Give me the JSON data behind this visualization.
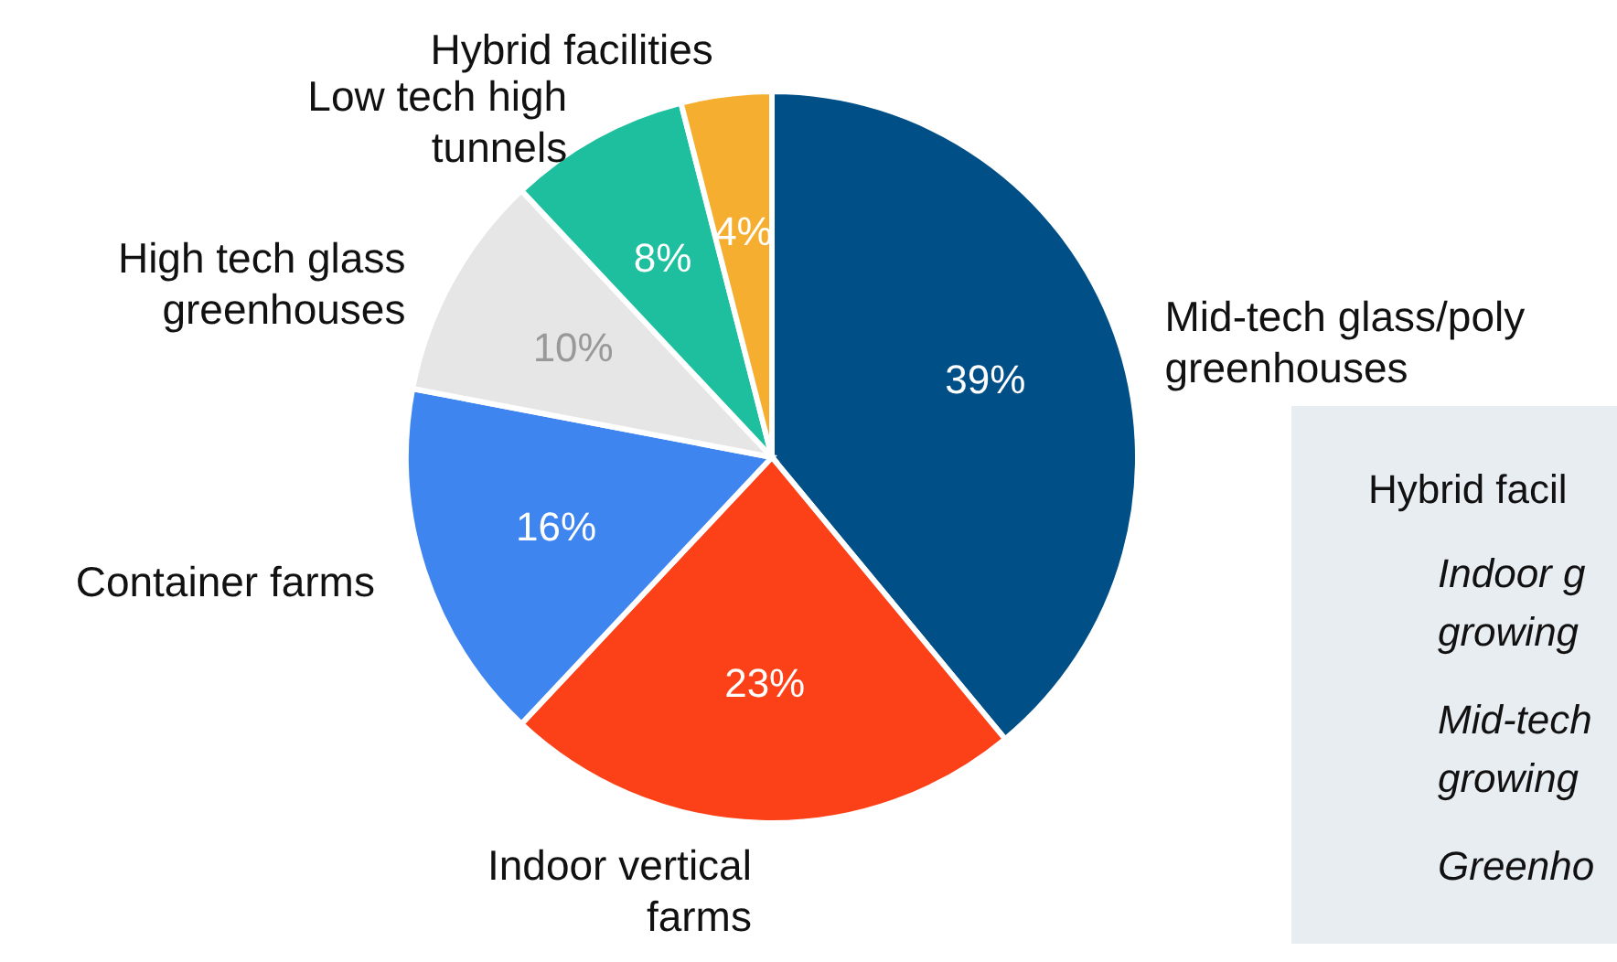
{
  "chart_data": {
    "type": "pie",
    "categories": [
      "Mid-tech glass/poly greenhouses",
      "Indoor vertical farms",
      "Container farms",
      "High tech glass greenhouses",
      "Low tech high tunnels",
      "Hybrid facilities"
    ],
    "values": [
      39,
      23,
      16,
      10,
      8,
      4
    ],
    "value_labels": [
      "39%",
      "23%",
      "16%",
      "10%",
      "8%",
      "4%"
    ],
    "colors": [
      "#004f86",
      "#fc4119",
      "#3f85f0",
      "#e6e6e6",
      "#1dbf9e",
      "#f5ae30"
    ],
    "annotations": [
      "Hybrid facil",
      "Indoor g",
      "growing",
      "Mid-tech",
      "growing",
      "Greenho"
    ]
  }
}
